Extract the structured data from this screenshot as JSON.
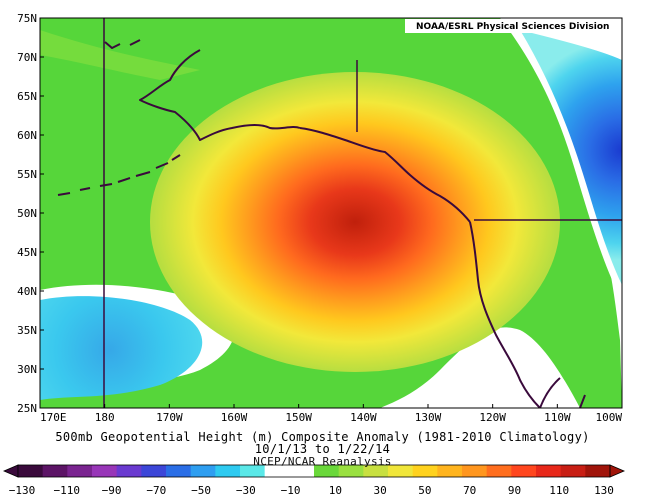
{
  "credit": "NOAA/ESRL Physical Sciences Division",
  "lat_labels": [
    "75N",
    "70N",
    "65N",
    "60N",
    "55N",
    "50N",
    "45N",
    "40N",
    "35N",
    "30N",
    "25N"
  ],
  "lon_labels": [
    "170E",
    "180",
    "170W",
    "160W",
    "150W",
    "140W",
    "130W",
    "120W",
    "110W",
    "100W"
  ],
  "title": "500mb Geopotential Height (m) Composite Anomaly (1981-2010 Climatology)",
  "dates": "10/1/13  to 1/22/14",
  "source": "NCEP/NCAR Reanalysis",
  "colorbar": {
    "ticks": [
      "−130",
      "−110",
      "−90",
      "−70",
      "−50",
      "−30",
      "−10",
      "10",
      "30",
      "50",
      "70",
      "90",
      "110",
      "130"
    ],
    "colors": [
      "#3a0a3c",
      "#5c1466",
      "#7a2490",
      "#9836b8",
      "#6a3ad0",
      "#3c46d8",
      "#2a6ee6",
      "#2e9ef0",
      "#2ecaf0",
      "#5ae8e8",
      "#ffffff",
      "#ffffff",
      "#6ad83a",
      "#9ae040",
      "#c8e040",
      "#f0e63a",
      "#ffd21e",
      "#ffb41e",
      "#ff961e",
      "#ff6e1e",
      "#ff461e",
      "#e8281a",
      "#c81e14",
      "#a0140a"
    ]
  },
  "anomaly_colors": {
    "max_center": "#c0200c",
    "high": "#ff4b1e",
    "mid": "#ffb41e",
    "low_positive": "#54d63a",
    "near_zero": "#ffffff",
    "low_negative": "#2ecaf0",
    "min_center": "#1a3ad0"
  }
}
